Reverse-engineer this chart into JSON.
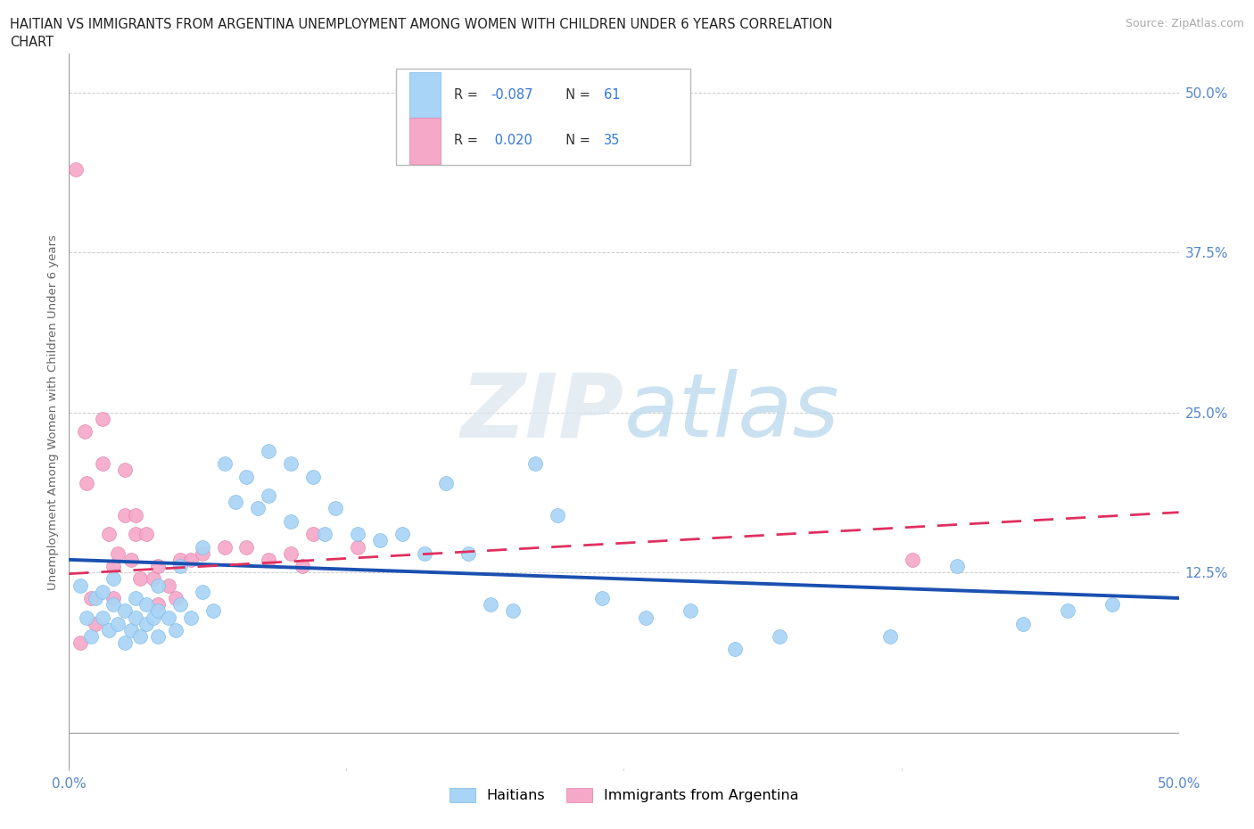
{
  "title_line1": "HAITIAN VS IMMIGRANTS FROM ARGENTINA UNEMPLOYMENT AMONG WOMEN WITH CHILDREN UNDER 6 YEARS CORRELATION",
  "title_line2": "CHART",
  "source_text": "Source: ZipAtlas.com",
  "ylabel": "Unemployment Among Women with Children Under 6 years",
  "ytick_values": [
    0.0,
    0.125,
    0.25,
    0.375,
    0.5
  ],
  "ytick_labels": [
    "",
    "12.5%",
    "25.0%",
    "37.5%",
    "50.0%"
  ],
  "xtick_values": [
    0.0,
    0.125,
    0.25,
    0.375,
    0.5
  ],
  "xtick_labels": [
    "0.0%",
    "",
    "",
    "",
    "50.0%"
  ],
  "xmin": 0.0,
  "xmax": 0.5,
  "ymin": -0.03,
  "ymax": 0.53,
  "legend_haitian_R": "-0.087",
  "legend_haitian_N": "61",
  "legend_argentina_R": "0.020",
  "legend_argentina_N": "35",
  "color_haitian": "#a8d4f5",
  "color_haitian_edge": "#7ab8e8",
  "color_argentina": "#f5a8c8",
  "color_argentina_edge": "#e080a8",
  "color_haitian_line": "#1a50b0",
  "color_argentina_line": "#e03060",
  "watermark_color": "#c8e4f5",
  "background_color": "#ffffff",
  "grid_color": "#cccccc",
  "haitian_scatter_x": [
    0.005,
    0.008,
    0.01,
    0.012,
    0.015,
    0.015,
    0.018,
    0.02,
    0.02,
    0.022,
    0.025,
    0.025,
    0.028,
    0.03,
    0.03,
    0.032,
    0.035,
    0.035,
    0.038,
    0.04,
    0.04,
    0.04,
    0.045,
    0.048,
    0.05,
    0.05,
    0.055,
    0.06,
    0.06,
    0.065,
    0.07,
    0.075,
    0.08,
    0.085,
    0.09,
    0.09,
    0.1,
    0.1,
    0.11,
    0.115,
    0.12,
    0.13,
    0.14,
    0.15,
    0.16,
    0.17,
    0.18,
    0.19,
    0.2,
    0.21,
    0.22,
    0.24,
    0.26,
    0.28,
    0.3,
    0.32,
    0.37,
    0.4,
    0.43,
    0.45,
    0.47
  ],
  "haitian_scatter_y": [
    0.115,
    0.09,
    0.075,
    0.105,
    0.11,
    0.09,
    0.08,
    0.12,
    0.1,
    0.085,
    0.095,
    0.07,
    0.08,
    0.105,
    0.09,
    0.075,
    0.1,
    0.085,
    0.09,
    0.115,
    0.095,
    0.075,
    0.09,
    0.08,
    0.13,
    0.1,
    0.09,
    0.145,
    0.11,
    0.095,
    0.21,
    0.18,
    0.2,
    0.175,
    0.22,
    0.185,
    0.21,
    0.165,
    0.2,
    0.155,
    0.175,
    0.155,
    0.15,
    0.155,
    0.14,
    0.195,
    0.14,
    0.1,
    0.095,
    0.21,
    0.17,
    0.105,
    0.09,
    0.095,
    0.065,
    0.075,
    0.075,
    0.13,
    0.085,
    0.095,
    0.1
  ],
  "argentina_scatter_x": [
    0.003,
    0.005,
    0.007,
    0.008,
    0.01,
    0.012,
    0.015,
    0.015,
    0.018,
    0.02,
    0.02,
    0.022,
    0.025,
    0.025,
    0.028,
    0.03,
    0.03,
    0.032,
    0.035,
    0.038,
    0.04,
    0.04,
    0.045,
    0.048,
    0.05,
    0.055,
    0.06,
    0.07,
    0.08,
    0.09,
    0.1,
    0.105,
    0.11,
    0.13,
    0.38
  ],
  "argentina_scatter_y": [
    0.44,
    0.07,
    0.235,
    0.195,
    0.105,
    0.085,
    0.245,
    0.21,
    0.155,
    0.13,
    0.105,
    0.14,
    0.205,
    0.17,
    0.135,
    0.17,
    0.155,
    0.12,
    0.155,
    0.12,
    0.13,
    0.1,
    0.115,
    0.105,
    0.135,
    0.135,
    0.14,
    0.145,
    0.145,
    0.135,
    0.14,
    0.13,
    0.155,
    0.145,
    0.135
  ],
  "haitian_trendline_x": [
    0.0,
    0.5
  ],
  "haitian_trendline_y": [
    0.135,
    0.105
  ],
  "argentina_trendline_x": [
    0.0,
    0.5
  ],
  "argentina_trendline_y": [
    0.124,
    0.172
  ]
}
